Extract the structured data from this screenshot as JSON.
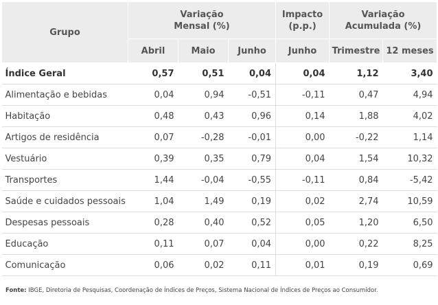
{
  "header": {
    "grupo": "Grupo",
    "variacao_mensal_line1": "Variação",
    "variacao_mensal_line2": "Mensal (%)",
    "impacto_line1": "Impacto",
    "impacto_line2": "(p.p.)",
    "variacao_acum_line1": "Variação",
    "variacao_acum_line2": "Acumulada (%)",
    "sub": [
      "Abril",
      "Maio",
      "Junho",
      "Junho",
      "Trimestre",
      "12 meses"
    ]
  },
  "rows": [
    {
      "name": "Índice Geral",
      "bold": true,
      "values": [
        "0,57",
        "0,51",
        "0,04",
        "0,04",
        "1,12",
        "3,40"
      ]
    },
    {
      "name": "Alimentação e bebidas",
      "values": [
        "0,04",
        "0,94",
        "-0,51",
        "-0,11",
        "0,47",
        "4,94"
      ]
    },
    {
      "name": "Habitação",
      "values": [
        "0,48",
        "0,43",
        "0,96",
        "0,14",
        "1,88",
        "4,02"
      ]
    },
    {
      "name": "Artigos de residência",
      "values": [
        "0,07",
        "-0,28",
        "-0,01",
        "0,00",
        "-0,22",
        "1,14"
      ]
    },
    {
      "name": "Vestuário",
      "values": [
        "0,39",
        "0,35",
        "0,79",
        "0,04",
        "1,54",
        "10,32"
      ]
    },
    {
      "name": "Transportes",
      "values": [
        "1,44",
        "-0,04",
        "-0,55",
        "-0,11",
        "0,84",
        "-5,42"
      ]
    },
    {
      "name": "Saúde e cuidados pessoais",
      "values": [
        "1,04",
        "1,49",
        "0,19",
        "0,02",
        "2,74",
        "10,59"
      ]
    },
    {
      "name": "Despesas pessoais",
      "values": [
        "0,28",
        "0,40",
        "0,52",
        "0,05",
        "1,20",
        "6,50"
      ]
    },
    {
      "name": "Educação",
      "values": [
        "0,11",
        "0,07",
        "0,04",
        "0,00",
        "0,22",
        "8,25"
      ]
    },
    {
      "name": "Comunicação",
      "values": [
        "0,06",
        "0,02",
        "0,11",
        "0,01",
        "0,19",
        "0,69"
      ]
    }
  ],
  "footer": {
    "label": "Fonte:",
    "text": " IBGE, Diretoria de Pesquisas, Coordenação de Índices de Preços, Sistema Nacional de Índices de Preços ao Consumidor."
  }
}
